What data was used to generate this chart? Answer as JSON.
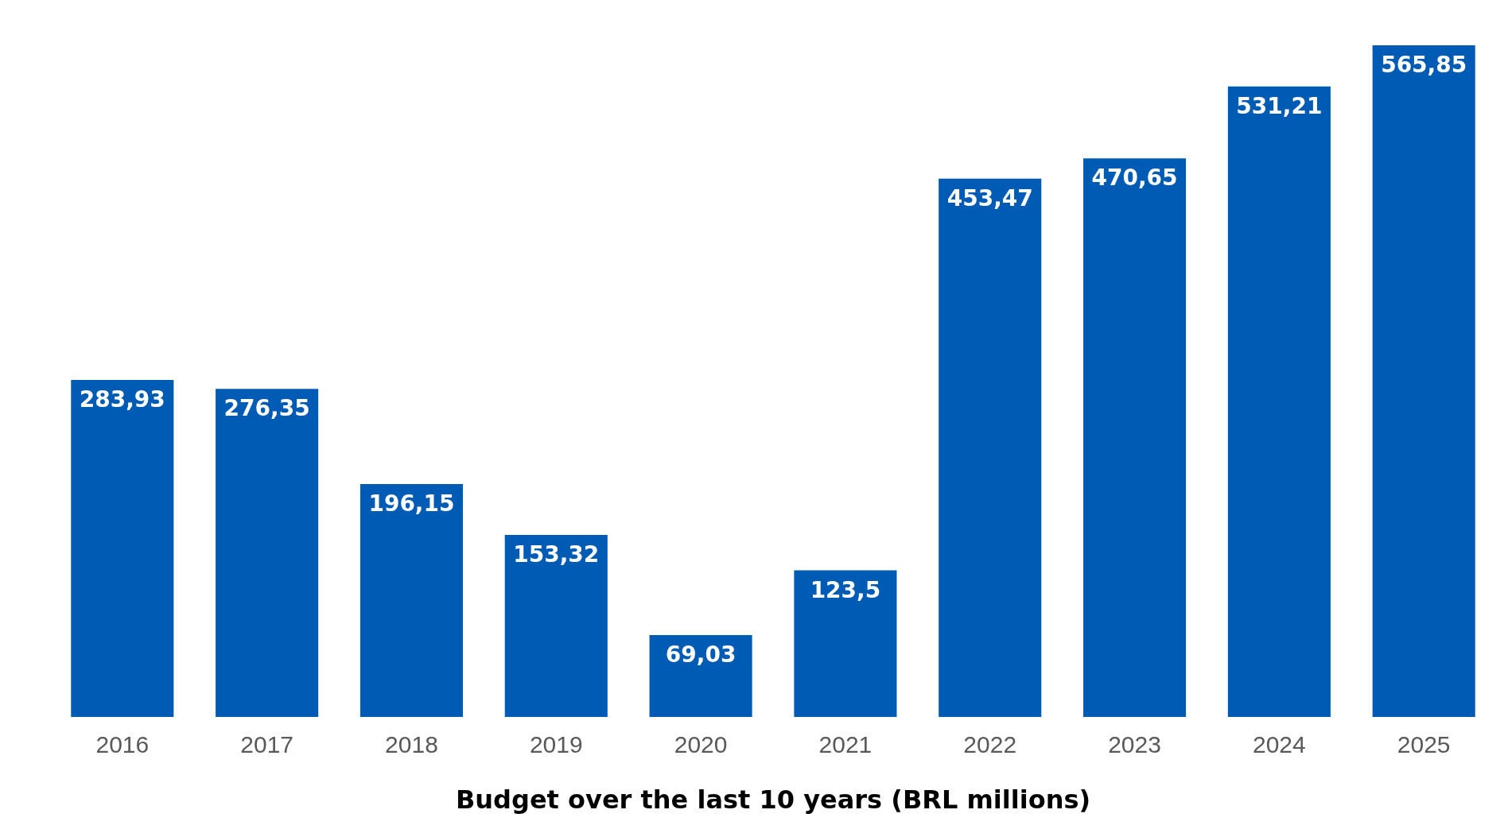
{
  "chart_data": {
    "type": "bar",
    "title": "Budget over the last 10 years (BRL millions)",
    "categories": [
      "2016",
      "2017",
      "2018",
      "2019",
      "2020",
      "2021",
      "2022",
      "2023",
      "2024",
      "2025"
    ],
    "values": [
      283.93,
      276.35,
      196.15,
      153.32,
      69.03,
      123.5,
      453.47,
      470.65,
      531.21,
      565.85
    ],
    "value_labels": [
      "283,93",
      "276,35",
      "196,15",
      "153,32",
      "69,03",
      "123,5",
      "453,47",
      "470,65",
      "531,21",
      "565,85"
    ],
    "color": "#005bb5"
  }
}
